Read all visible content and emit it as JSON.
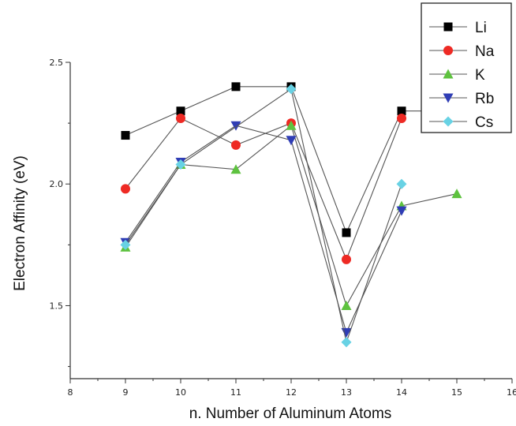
{
  "chart_data": {
    "type": "line",
    "title": "",
    "xlabel": "n. Number of Aluminum Atoms",
    "ylabel": "Electron Affinity (eV)",
    "xlim": [
      8,
      16
    ],
    "ylim": [
      1.2,
      2.5
    ],
    "xticks": [
      "8",
      "9",
      "10",
      "11",
      "12",
      "13",
      "14",
      "15",
      "16"
    ],
    "yticks": [
      {
        "value": 1.5,
        "label": "1.5"
      },
      {
        "value": 2.0,
        "label": "2.0"
      },
      {
        "value": 2.5,
        "label": "2.5"
      }
    ],
    "grid": false,
    "legend_position": "top-right",
    "series": [
      {
        "name": "Li",
        "marker": "square",
        "color": "#000000",
        "points": [
          [
            9,
            2.2
          ],
          [
            10,
            2.3
          ],
          [
            11,
            2.4
          ],
          [
            12,
            2.4
          ],
          [
            13,
            1.8
          ],
          [
            14,
            2.3
          ],
          [
            15,
            2.3
          ]
        ]
      },
      {
        "name": "Na",
        "marker": "circle",
        "color": "#ee2a24",
        "points": [
          [
            9,
            1.98
          ],
          [
            10,
            2.27
          ],
          [
            11,
            2.16
          ],
          [
            12,
            2.25
          ],
          [
            13,
            1.69
          ],
          [
            14,
            2.27
          ]
        ]
      },
      {
        "name": "K",
        "marker": "triangle-up",
        "color": "#5ec23f",
        "points": [
          [
            9,
            1.74
          ],
          [
            10,
            2.08
          ],
          [
            11,
            2.06
          ],
          [
            12,
            2.24
          ],
          [
            13,
            1.5
          ],
          [
            14,
            1.91
          ],
          [
            15,
            1.96
          ]
        ]
      },
      {
        "name": "Rb",
        "marker": "triangle-down",
        "color": "#2f3db5",
        "points": [
          [
            9,
            1.76
          ],
          [
            10,
            2.09
          ],
          [
            11,
            2.24
          ],
          [
            12,
            2.18
          ],
          [
            13,
            1.39
          ],
          [
            14,
            1.89
          ]
        ]
      },
      {
        "name": "Cs",
        "marker": "diamond",
        "color": "#68d2e4",
        "points": [
          [
            9,
            1.75
          ],
          [
            10,
            2.08
          ],
          [
            12,
            2.39
          ],
          [
            13,
            1.35
          ],
          [
            14,
            2.0
          ]
        ]
      }
    ]
  }
}
